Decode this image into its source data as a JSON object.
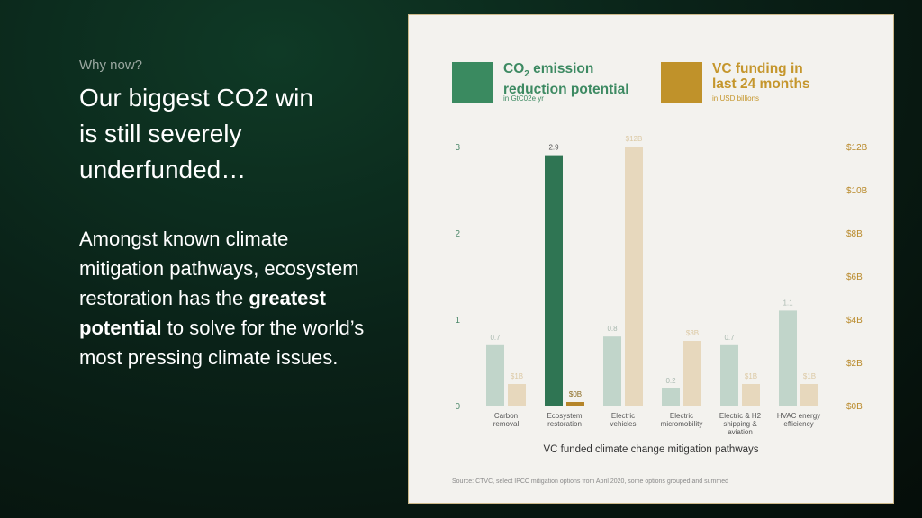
{
  "slide": {
    "eyebrow": "Why now?",
    "headline": [
      "Our biggest CO2 win",
      "is still severely",
      "underfunded…"
    ],
    "body_before": "Amongst known climate mitigation pathways, ecosystem restoration has the ",
    "body_strong": "greatest potential",
    "body_after": " to solve for the world’s most pressing climate issues."
  },
  "legend": {
    "left": {
      "title_prefix": "CO",
      "title_sub": "2",
      "title_rest": " emission",
      "title_line2": "reduction potential",
      "unit": "in GtC02e yr"
    },
    "right": {
      "title_line1": "VC funding in",
      "title_line2": "last 24 months",
      "unit": "in USD billions"
    }
  },
  "colors": {
    "emission_primary": "#2f7553",
    "emission_light": "#c1d5ca",
    "funding_primary": "#b5852a",
    "funding_light": "#e7d8bd",
    "legend_green": "#3a8a60",
    "legend_gold": "#c0922a"
  },
  "chart_data": {
    "type": "bar",
    "title": "",
    "xlabel": "VC funded climate change mitigation pathways",
    "categories": [
      [
        "Carbon",
        "removal"
      ],
      [
        "Ecosystem",
        "restoration"
      ],
      [
        "Electric",
        "vehicles"
      ],
      [
        "Electric",
        "micromobility"
      ],
      [
        "Electric & H2",
        "shipping &",
        "aviation"
      ],
      [
        "HVAC energy",
        "efficiency"
      ]
    ],
    "highlight_index": 1,
    "series": [
      {
        "name": "CO2 emission reduction potential",
        "axis": "left",
        "values": [
          0.7,
          2.9,
          0.8,
          0.2,
          0.7,
          1.1
        ],
        "labels": [
          "0.7",
          "2.9",
          "0.8",
          "0.2",
          "0.7",
          "1.1"
        ]
      },
      {
        "name": "VC funding in last 24 months",
        "axis": "right",
        "values": [
          1,
          0,
          12,
          3,
          1,
          1
        ],
        "labels": [
          "$1B",
          "$0B",
          "$12B",
          "$3B",
          "$1B",
          "$1B"
        ]
      }
    ],
    "y_left": {
      "ticks": [
        0,
        1,
        2,
        3
      ],
      "tick_labels": [
        "0",
        "1",
        "2",
        "3"
      ],
      "lim": [
        0,
        3
      ]
    },
    "y_right": {
      "ticks": [
        0,
        2,
        4,
        6,
        8,
        10,
        12
      ],
      "tick_labels": [
        "$0B",
        "$2B",
        "$4B",
        "$6B",
        "$8B",
        "$10B",
        "$12B"
      ],
      "lim": [
        0,
        12
      ]
    },
    "grid": false,
    "source": "Source: CTVC, select IPCC mitigation options from April 2020, some options grouped and summed"
  }
}
